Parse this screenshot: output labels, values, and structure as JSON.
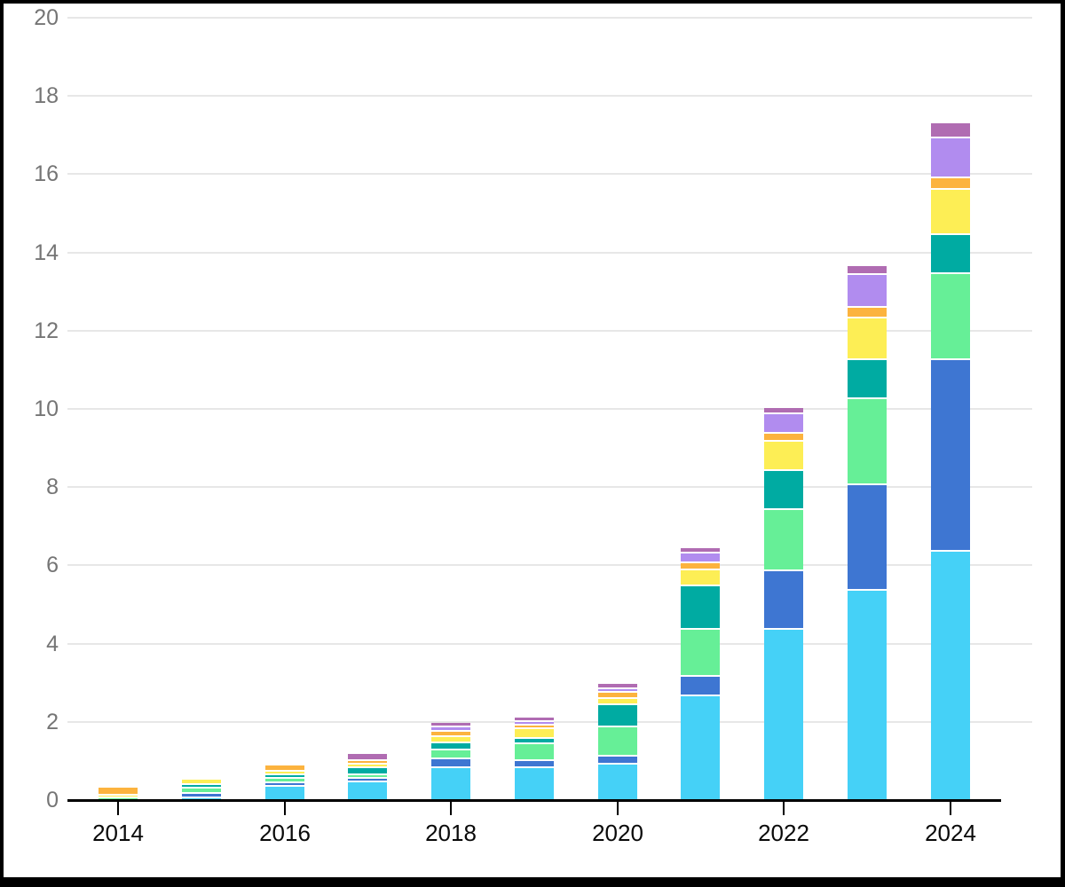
{
  "chart_data": {
    "type": "bar",
    "stacked": true,
    "title": "",
    "xlabel": "",
    "ylabel": "",
    "categories": [
      "2014",
      "2015",
      "2016",
      "2017",
      "2018",
      "2019",
      "2020",
      "2021",
      "2022",
      "2023",
      "2024"
    ],
    "x_tick_labels": [
      "2014",
      "2016",
      "2018",
      "2020",
      "2022",
      "2024"
    ],
    "y_ticks": [
      0,
      2,
      4,
      6,
      8,
      10,
      12,
      14,
      16,
      18,
      20
    ],
    "ylim": [
      0,
      20
    ],
    "grid": "horizontal",
    "legend": "none",
    "series": [
      {
        "name": "cyan",
        "color": "#45d1f7",
        "values": [
          0.0,
          0.1,
          0.38,
          0.5,
          0.87,
          0.85,
          0.95,
          2.7,
          4.4,
          5.4,
          6.4
        ]
      },
      {
        "name": "royal-blue",
        "color": "#3e76d2",
        "values": [
          0.0,
          0.1,
          0.1,
          0.08,
          0.22,
          0.2,
          0.2,
          0.5,
          1.5,
          2.7,
          4.9
        ]
      },
      {
        "name": "green",
        "color": "#66ef97",
        "values": [
          0.08,
          0.14,
          0.1,
          0.09,
          0.22,
          0.42,
          0.76,
          1.2,
          1.55,
          2.2,
          2.2
        ]
      },
      {
        "name": "teal",
        "color": "#00aba2",
        "values": [
          0.0,
          0.08,
          0.09,
          0.2,
          0.18,
          0.14,
          0.55,
          1.1,
          1.0,
          1.0,
          1.0
        ]
      },
      {
        "name": "yellow",
        "color": "#fdee55",
        "values": [
          0.08,
          0.1,
          0.09,
          0.09,
          0.16,
          0.24,
          0.18,
          0.42,
          0.75,
          1.05,
          1.15
        ]
      },
      {
        "name": "orange",
        "color": "#fcb33e",
        "values": [
          0.16,
          0.0,
          0.12,
          0.09,
          0.15,
          0.1,
          0.14,
          0.18,
          0.22,
          0.28,
          0.3
        ]
      },
      {
        "name": "violet",
        "color": "#b18cef",
        "values": [
          0.0,
          0.0,
          0.0,
          0.0,
          0.1,
          0.09,
          0.1,
          0.25,
          0.48,
          0.85,
          1.0
        ]
      },
      {
        "name": "plum",
        "color": "#b06cb2",
        "values": [
          0.0,
          0.0,
          0.0,
          0.12,
          0.08,
          0.08,
          0.08,
          0.1,
          0.12,
          0.18,
          0.35
        ]
      }
    ],
    "colors": {
      "background": "#ffffff",
      "gridline": "#e7e7e7",
      "axis": "#000000",
      "y_label": "#757575",
      "x_label": "#0a0a0a",
      "frame_border": "#000000"
    }
  }
}
